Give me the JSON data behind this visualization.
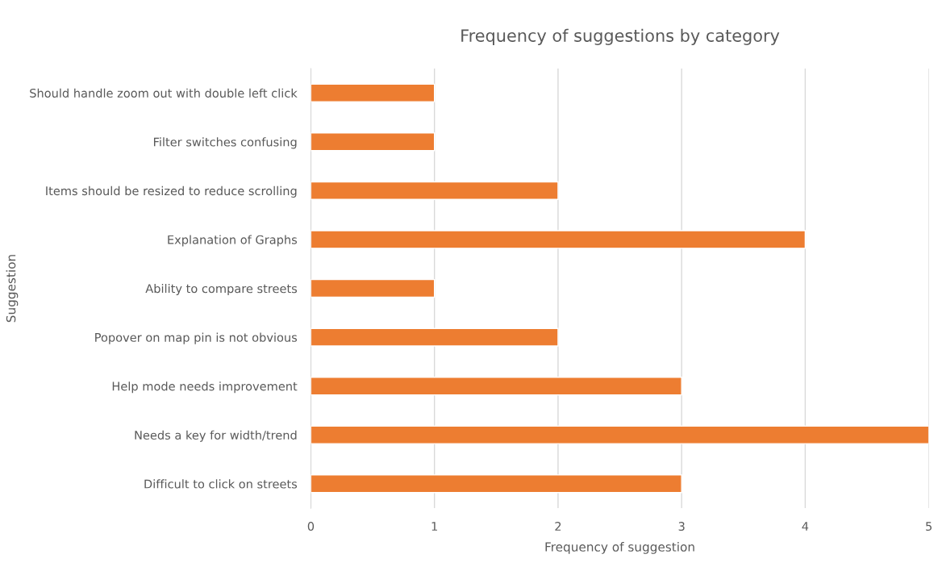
{
  "chart_data": {
    "type": "bar",
    "orientation": "horizontal",
    "title": "Frequency of suggestions by category",
    "xlabel": "Frequency of suggestion",
    "ylabel": "Suggestion",
    "categories": [
      "Should handle zoom out with double left click",
      "Filter switches confusing",
      "Items should be resized to reduce scrolling",
      "Explanation of Graphs",
      "Ability to compare streets",
      "Popover on map pin is not obvious",
      "Help mode needs improvement",
      "Needs a key for width/trend",
      "Difficult to click on streets"
    ],
    "values": [
      1,
      1,
      2,
      4,
      1,
      2,
      3,
      5,
      3
    ],
    "color": "#ed7d31",
    "xlim": [
      0,
      5
    ],
    "xticks": [
      0,
      1,
      2,
      3,
      4,
      5
    ],
    "grid": "x",
    "legend": false
  }
}
